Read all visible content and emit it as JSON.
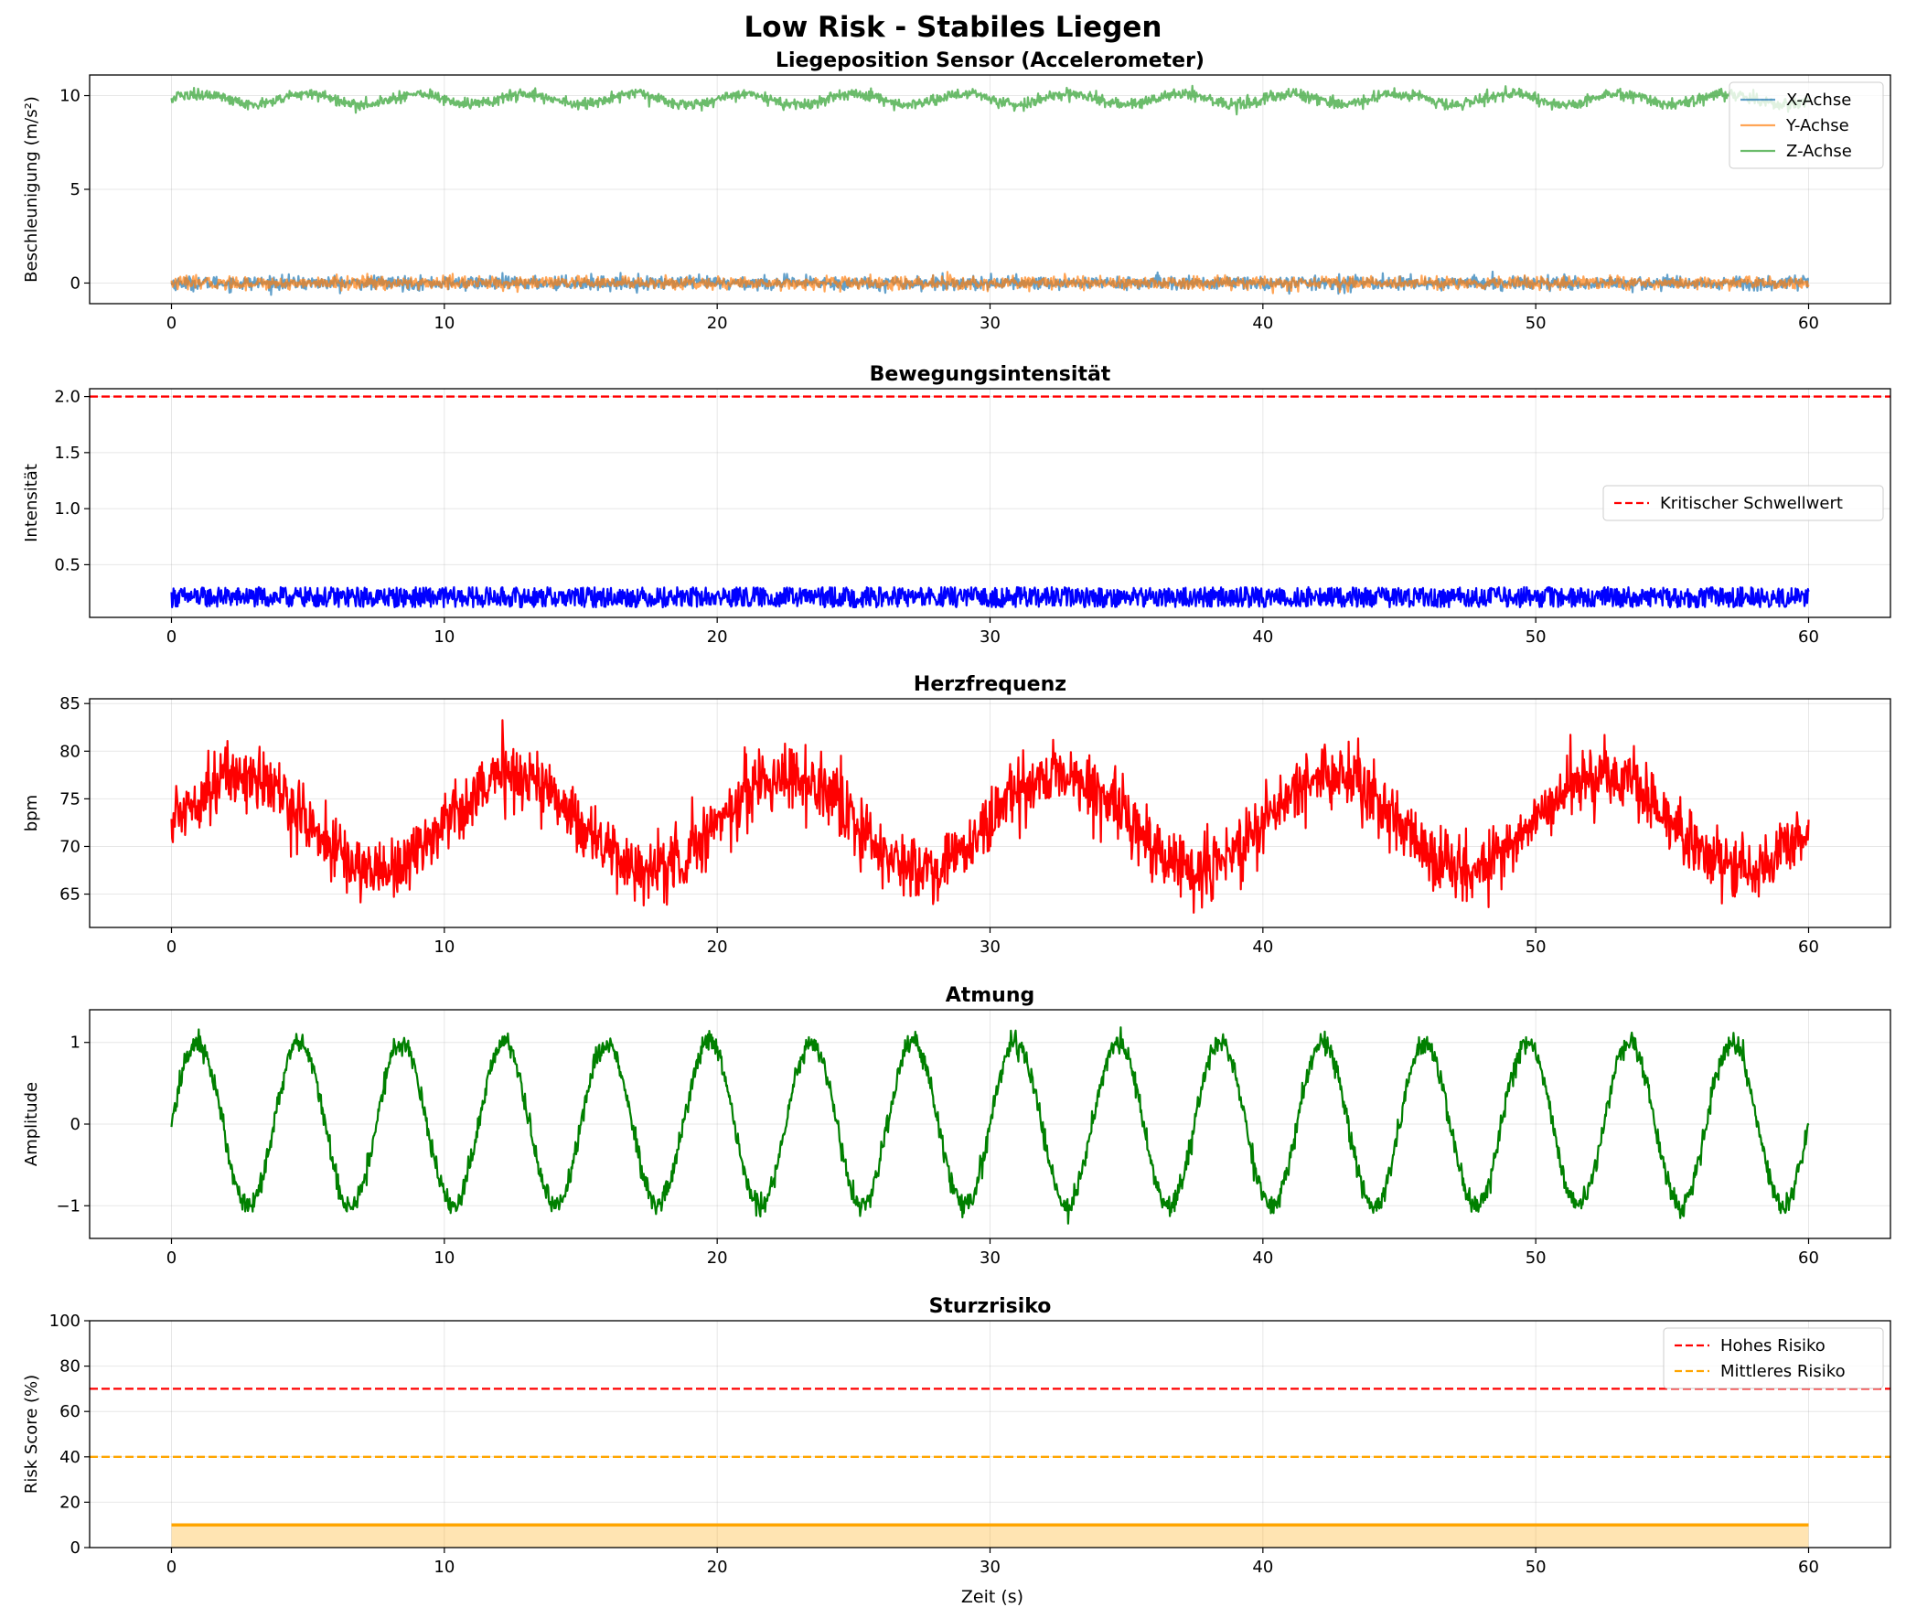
{
  "figure": {
    "suptitle": "Low Risk - Stabiles Liegen",
    "xlabel": "Zeit (s)"
  },
  "chart_data": [
    {
      "id": "accelerometer",
      "type": "line",
      "title": "Liegeposition Sensor (Accelerometer)",
      "xlabel": "",
      "ylabel": "Beschleunigung (m/s²)",
      "xlim": [
        -3,
        63
      ],
      "ylim": [
        -1.1,
        11.1
      ],
      "xticks": [
        0,
        10,
        20,
        30,
        40,
        50,
        60
      ],
      "yticks": [
        0,
        5,
        10
      ],
      "grid": true,
      "legend_position": "top-right",
      "series": [
        {
          "name": "X-Achse",
          "color": "#1f77b4",
          "opacity": 0.7,
          "mean": 0.0,
          "noise_sd": 0.18,
          "points": 2400
        },
        {
          "name": "Y-Achse",
          "color": "#ff7f0e",
          "opacity": 0.7,
          "mean": 0.0,
          "noise_sd": 0.17,
          "points": 2400
        },
        {
          "name": "Z-Achse",
          "color": "#2ca02c",
          "opacity": 0.7,
          "mean": 9.81,
          "wave_amplitude": 0.28,
          "wave_period_s": 4,
          "noise_sd": 0.15,
          "points": 2400
        }
      ]
    },
    {
      "id": "intensity",
      "type": "line",
      "title": "Bewegungsintensität",
      "xlabel": "",
      "ylabel": "Intensität",
      "xlim": [
        -3,
        63
      ],
      "ylim": [
        0.03,
        2.07
      ],
      "xticks": [
        0,
        10,
        20,
        30,
        40,
        50,
        60
      ],
      "yticks": [
        0.5,
        1.0,
        1.5,
        2.0
      ],
      "ytick_labels": [
        "0.5",
        "1.0",
        "1.5",
        "2.0"
      ],
      "grid": true,
      "legend_position": "center-right",
      "series": [
        {
          "name": "",
          "color": "#0000ff",
          "mean": 0.2,
          "noise_range": [
            0.12,
            0.3
          ],
          "points": 2400
        }
      ],
      "reference_lines": [
        {
          "name": "Kritischer Schwellwert",
          "y": 2.0,
          "color": "#ff0000",
          "dashed": true
        }
      ]
    },
    {
      "id": "heart_rate",
      "type": "line",
      "title": "Herzfrequenz",
      "xlabel": "",
      "ylabel": "bpm",
      "xlim": [
        -3,
        63
      ],
      "ylim": [
        61.5,
        85.5
      ],
      "xticks": [
        0,
        10,
        20,
        30,
        40,
        50,
        60
      ],
      "yticks": [
        65,
        70,
        75,
        80,
        85
      ],
      "grid": true,
      "series": [
        {
          "name": "",
          "color": "#ff0000",
          "mean": 72.5,
          "wave_amplitude": 5,
          "wave_period_s": 10,
          "noise_sd": 1.7,
          "points": 2400
        }
      ]
    },
    {
      "id": "breathing",
      "type": "line",
      "title": "Atmung",
      "xlabel": "",
      "ylabel": "Amplitude",
      "xlim": [
        -3,
        63
      ],
      "ylim": [
        -1.4,
        1.4
      ],
      "xticks": [
        0,
        10,
        20,
        30,
        40,
        50,
        60
      ],
      "yticks": [
        -1,
        0,
        1
      ],
      "ytick_labels": [
        "−1",
        "0",
        "1"
      ],
      "grid": true,
      "series": [
        {
          "name": "",
          "color": "#008000",
          "mean": 0,
          "wave_amplitude": 1.0,
          "wave_period_s": 3.75,
          "noise_sd": 0.07,
          "points": 2400
        }
      ]
    },
    {
      "id": "fall_risk",
      "type": "area",
      "title": "Sturzrisiko",
      "xlabel": "Zeit (s)",
      "ylabel": "Risk Score (%)",
      "xlim": [
        -3,
        63
      ],
      "ylim": [
        0,
        100
      ],
      "xticks": [
        0,
        10,
        20,
        30,
        40,
        50,
        60
      ],
      "yticks": [
        0,
        20,
        40,
        60,
        80,
        100
      ],
      "grid": true,
      "legend_position": "top-right",
      "series": [
        {
          "name": "",
          "color": "#ffa500",
          "fill": "#ffa500",
          "fill_opacity": 0.3,
          "x": [
            0,
            60
          ],
          "values": [
            10,
            10
          ]
        }
      ],
      "reference_lines": [
        {
          "name": "Hohes Risiko",
          "y": 70,
          "color": "#ff0000",
          "dashed": true
        },
        {
          "name": "Mittleres Risiko",
          "y": 40,
          "color": "#ffa500",
          "dashed": true
        }
      ]
    }
  ]
}
